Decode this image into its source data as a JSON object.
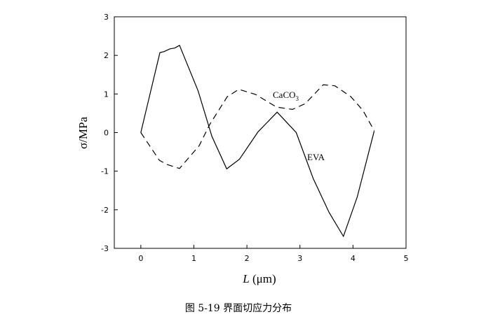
{
  "chart_data": {
    "type": "line",
    "title": "",
    "caption": "图 5-19 界面切应力分布",
    "xlabel_italic": "L",
    "xlabel_rest": " (μm)",
    "ylabel": "σ/MPa",
    "xlim": [
      -0.5,
      5
    ],
    "ylim": [
      -3,
      3
    ],
    "xticks": [
      "0",
      "1",
      "2",
      "3",
      "4",
      "5"
    ],
    "yticks": [
      "3",
      "2",
      "1",
      "0",
      "-1",
      "-2",
      "-3"
    ],
    "grid": false,
    "series": [
      {
        "name": "EVA",
        "style": "solid",
        "x": [
          0,
          0.36,
          0.44,
          0.55,
          0.64,
          0.73,
          1.08,
          1.34,
          1.62,
          1.86,
          2.21,
          2.57,
          2.93,
          3.25,
          3.55,
          3.82,
          4.08,
          4.4
        ],
        "y": [
          0,
          2.07,
          2.1,
          2.17,
          2.19,
          2.26,
          1.08,
          -0.1,
          -0.94,
          -0.69,
          0.02,
          0.53,
          0,
          -1.19,
          -2.07,
          -2.69,
          -1.67,
          0.04
        ]
      },
      {
        "name": "CaCO3",
        "style": "dashed",
        "x": [
          0,
          0.35,
          0.48,
          0.73,
          1.1,
          1.3,
          1.63,
          1.85,
          2.16,
          2.56,
          2.86,
          3.1,
          3.44,
          3.66,
          3.96,
          4.19,
          4.4
        ],
        "y": [
          0,
          -0.72,
          -0.82,
          -0.93,
          -0.34,
          0.21,
          0.93,
          1.12,
          0.99,
          0.66,
          0.6,
          0.75,
          1.24,
          1.21,
          0.93,
          0.57,
          0.05
        ]
      }
    ],
    "annotations": {
      "caco3_main": "CaCO",
      "caco3_sub": "3",
      "eva": "EVA"
    }
  }
}
